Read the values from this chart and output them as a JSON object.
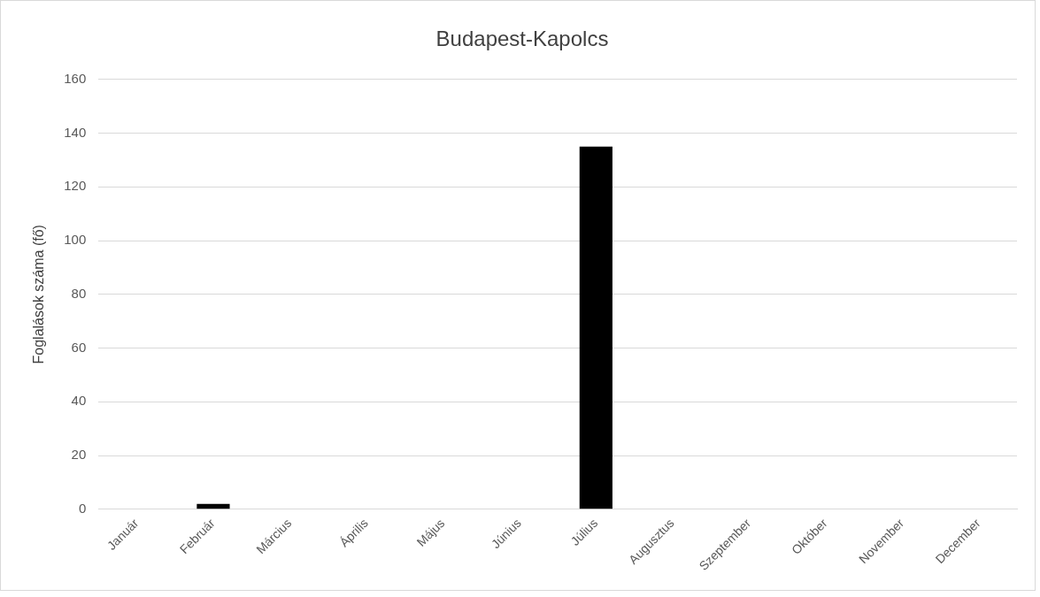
{
  "chart_data": {
    "type": "bar",
    "title": "Budapest-Kapolcs",
    "ylabel": "Foglalások száma (fő)",
    "categories": [
      "Január",
      "Február",
      "Március",
      "Április",
      "Május",
      "Június",
      "Július",
      "Augusztus",
      "Szeptember",
      "Október",
      "November",
      "December"
    ],
    "values": [
      0,
      2,
      0,
      0,
      0,
      0,
      135,
      0,
      0,
      0,
      0,
      0
    ],
    "color": "#000000",
    "ylim": [
      0,
      160
    ],
    "yticks": [
      0,
      20,
      40,
      60,
      80,
      100,
      120,
      140,
      160
    ],
    "grid": "y"
  }
}
